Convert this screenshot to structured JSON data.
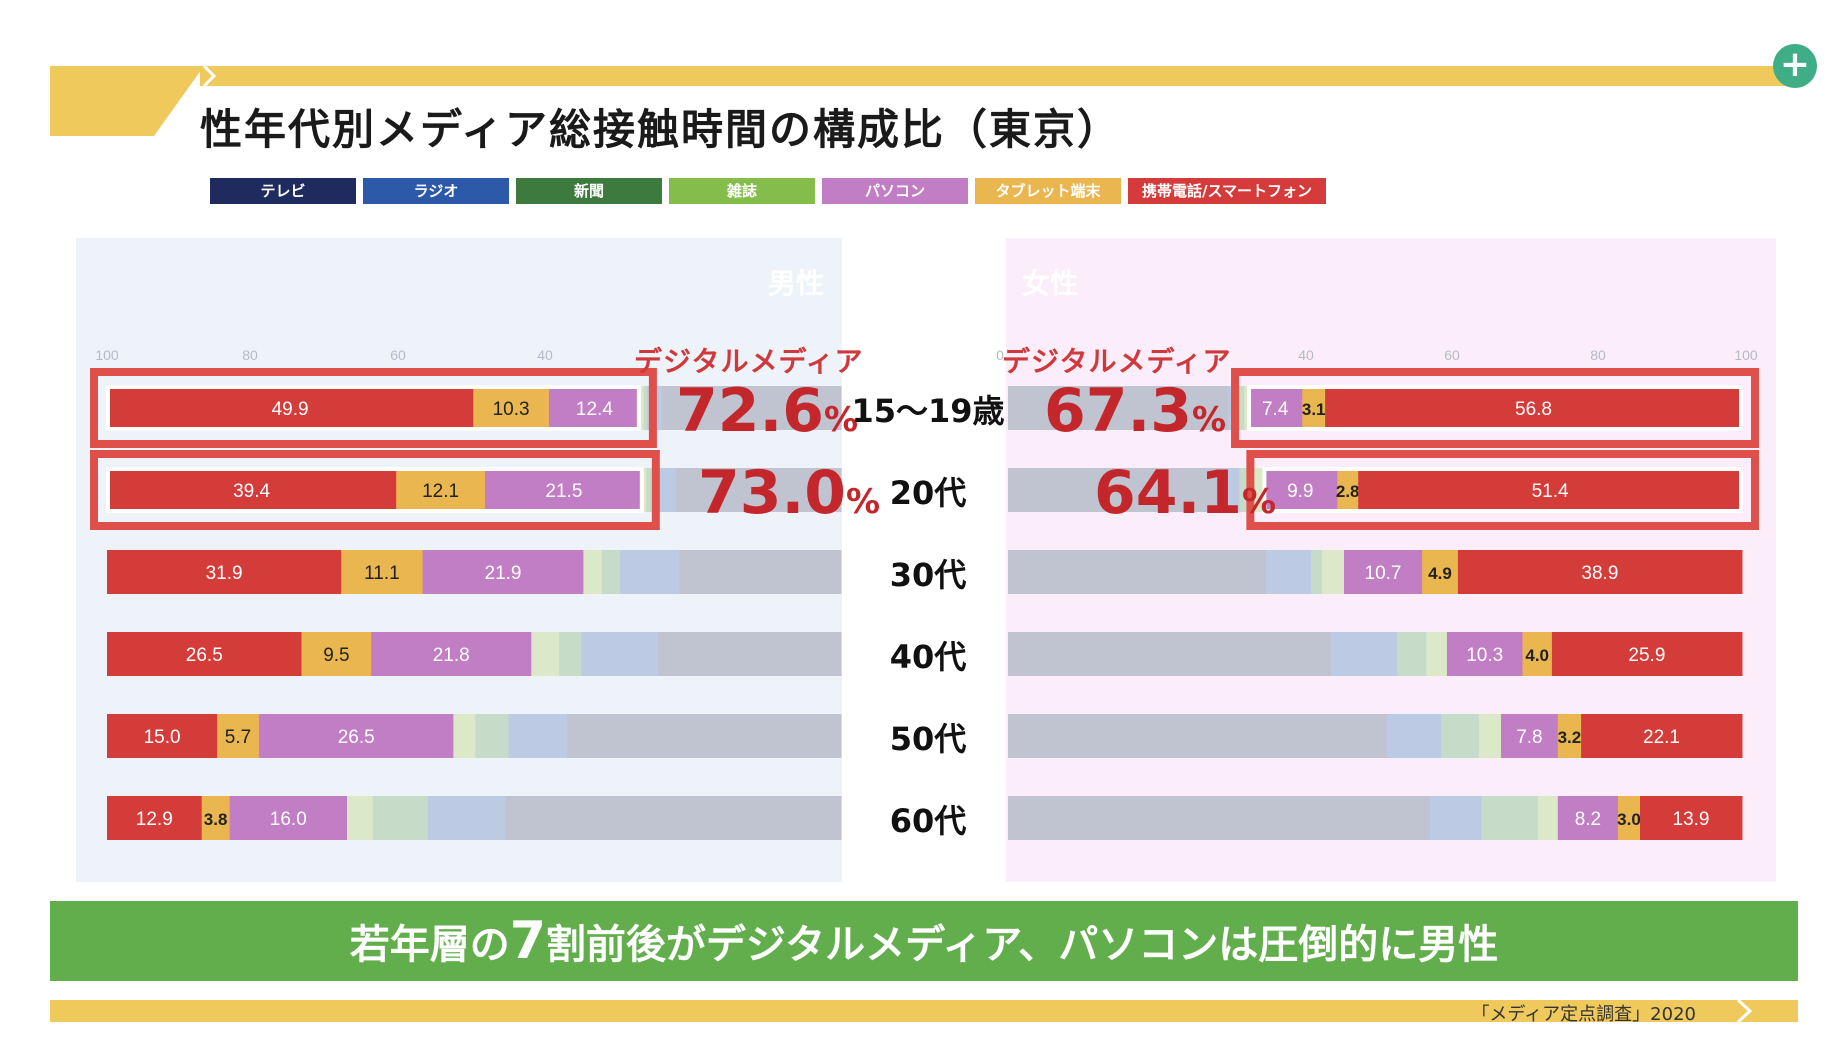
{
  "title": "性年代別メディア総接触時間の構成比（東京）",
  "legend": [
    {
      "label": "テレビ",
      "color": "#1f2a5e"
    },
    {
      "label": "ラジオ",
      "color": "#2d5aa8"
    },
    {
      "label": "新聞",
      "color": "#3d7a3d"
    },
    {
      "label": "雑誌",
      "color": "#85bd4c"
    },
    {
      "label": "パソコン",
      "color": "#c27ec4"
    },
    {
      "label": "タブレット端末",
      "color": "#eab650"
    },
    {
      "label": "携帯電話/スマートフォン",
      "color": "#d63b3b"
    }
  ],
  "bar_colors": {
    "mobile": "#d43c3a",
    "tablet": "#eab650",
    "pc": "#c27ec4",
    "magazine": "#dbe9c8",
    "newspaper": "#c7dcc8",
    "radio": "#bccbe3",
    "tv": "#c0c3d0",
    "highlight": "#e0504a"
  },
  "genders": {
    "male": "男性",
    "female": "女性",
    "male_color": "#36518f",
    "female_color": "#d9616e"
  },
  "digital_label": "デジタルメディア",
  "summary": {
    "male": [
      {
        "value": "72.6",
        "unit": "%"
      },
      {
        "value": "73.0",
        "unit": "%"
      }
    ],
    "female": [
      {
        "value": "67.3",
        "unit": "%"
      },
      {
        "value": "64.1",
        "unit": "%"
      }
    ]
  },
  "conclusion": {
    "prefix": "若年層の",
    "number": "7",
    "suffix": "割前後がデジタルメディア、パソコンは圧倒的に男性"
  },
  "source": "「メディア定点調査」2020",
  "chart_data": [
    {
      "type": "bar",
      "stacked": true,
      "horizontal": true,
      "orientation": "reversed",
      "group": "男性",
      "categories": [
        "15〜19歳",
        "20代",
        "30代",
        "40代",
        "50代",
        "60代"
      ],
      "series": [
        {
          "name": "携帯電話/スマートフォン",
          "values": [
            49.9,
            39.4,
            31.9,
            26.5,
            15.0,
            12.9
          ],
          "label_values": [
            "49.9",
            "39.4",
            "31.9",
            "26.5",
            "15.0",
            "12.9"
          ]
        },
        {
          "name": "タブレット端末",
          "values": [
            10.3,
            12.1,
            11.1,
            9.5,
            5.7,
            3.8
          ],
          "label_values": [
            "10.3",
            "12.1",
            "11.1",
            "9.5",
            "5.7",
            "3.8"
          ]
        },
        {
          "name": "パソコン",
          "values": [
            12.4,
            21.5,
            21.9,
            21.8,
            26.5,
            16.0
          ],
          "label_values": [
            "12.4",
            "21.5",
            "21.9",
            "21.8",
            "26.5",
            "16.0"
          ]
        },
        {
          "name": "雑誌",
          "values": [
            0.5,
            0.5,
            2.5,
            3.8,
            3.0,
            3.5
          ],
          "label_values": [
            null,
            null,
            null,
            null,
            null,
            null
          ]
        },
        {
          "name": "新聞",
          "values": [
            0.5,
            1.5,
            2.5,
            3.0,
            4.5,
            7.5
          ],
          "label_values": [
            null,
            null,
            null,
            null,
            null,
            null
          ]
        },
        {
          "name": "ラジオ",
          "values": [
            2.0,
            2.5,
            8.0,
            10.5,
            8.0,
            10.5
          ],
          "label_values": [
            null,
            null,
            null,
            null,
            null,
            null
          ]
        },
        {
          "name": "テレビ",
          "values": [
            24.4,
            22.5,
            22.1,
            24.9,
            37.3,
            45.8
          ],
          "label_values": [
            null,
            null,
            null,
            null,
            null,
            null
          ]
        }
      ],
      "xlim": [
        100,
        0
      ],
      "x_ticks": [
        "100",
        "80",
        "60",
        "40"
      ],
      "highlighted_rows": [
        0,
        1
      ]
    },
    {
      "type": "bar",
      "stacked": true,
      "horizontal": true,
      "group": "女性",
      "categories": [
        "15〜19歳",
        "20代",
        "30代",
        "40代",
        "50代",
        "60代"
      ],
      "series": [
        {
          "name": "テレビ",
          "values": [
            30.0,
            28.5,
            35.3,
            44.0,
            52.0,
            57.5
          ],
          "label_values": [
            null,
            null,
            null,
            null,
            null,
            null
          ]
        },
        {
          "name": "ラジオ",
          "values": [
            1.5,
            2.5,
            6.2,
            9.0,
            7.5,
            7.0
          ],
          "label_values": [
            null,
            null,
            null,
            null,
            null,
            null
          ]
        },
        {
          "name": "新聞",
          "values": [
            0.7,
            1.7,
            1.5,
            4.0,
            5.2,
            7.7
          ],
          "label_values": [
            null,
            null,
            null,
            null,
            null,
            null
          ]
        },
        {
          "name": "雑誌",
          "values": [
            0.5,
            1.5,
            3.0,
            2.8,
            3.0,
            2.7
          ],
          "label_values": [
            null,
            null,
            null,
            null,
            null,
            null
          ]
        },
        {
          "name": "パソコン",
          "values": [
            7.4,
            9.9,
            10.7,
            10.3,
            7.8,
            8.2
          ],
          "label_values": [
            "7.4",
            "9.9",
            "10.7",
            "10.3",
            "7.8",
            "8.2"
          ]
        },
        {
          "name": "タブレット端末",
          "values": [
            3.1,
            2.8,
            4.9,
            4.0,
            3.2,
            3.0
          ],
          "label_values": [
            "3.1",
            "2.8",
            "4.9",
            "4.0",
            "3.2",
            "3.0"
          ]
        },
        {
          "name": "携帯電話/スマートフォン",
          "values": [
            56.8,
            51.4,
            38.9,
            25.9,
            22.1,
            13.9
          ],
          "label_values": [
            "56.8",
            "51.4",
            "38.9",
            "25.9",
            "22.1",
            "13.9"
          ]
        }
      ],
      "xlim": [
        0,
        100
      ],
      "x_ticks": [
        "0",
        "40",
        "60",
        "80",
        "100"
      ],
      "highlighted_rows": [
        0,
        1
      ]
    }
  ]
}
